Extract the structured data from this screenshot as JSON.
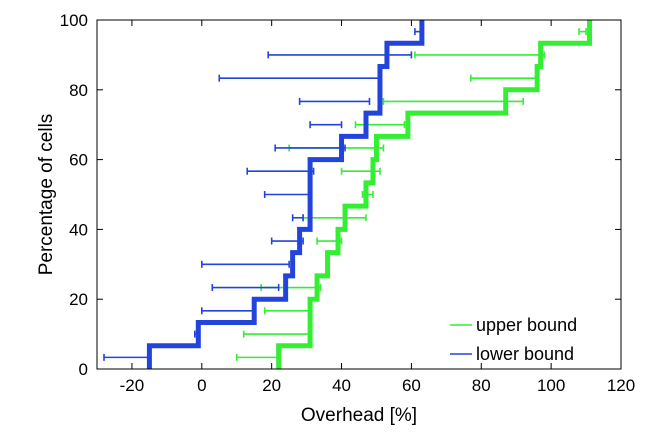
{
  "chart_data": {
    "type": "line",
    "title": "",
    "xlabel": "Overhead [%]",
    "ylabel": "Percentage of cells",
    "xlim": [
      -30,
      120
    ],
    "ylim": [
      0,
      100
    ],
    "xticks": [
      -20,
      0,
      20,
      40,
      60,
      80,
      100,
      120
    ],
    "yticks": [
      0,
      20,
      40,
      60,
      80,
      100
    ],
    "grid": false,
    "legend_position": "bottom-right",
    "series": [
      {
        "name": "upper bound",
        "color": "#33ee33",
        "step_x": [
          22,
          31,
          33,
          36,
          39,
          41,
          47,
          49,
          50,
          59,
          87,
          96,
          97,
          111
        ],
        "step_y": [
          0,
          6.67,
          20,
          26.67,
          33.33,
          40,
          46.67,
          53.33,
          60,
          66.67,
          73.33,
          80,
          86.67,
          93.33
        ],
        "top_y": 100,
        "errorbars": [
          {
            "y": 3.33,
            "lo": 10,
            "hi": 22
          },
          {
            "y": 10,
            "lo": 12,
            "hi": 31
          },
          {
            "y": 16.67,
            "lo": 18,
            "hi": 31
          },
          {
            "y": 23.33,
            "lo": 17,
            "hi": 34
          },
          {
            "y": 36.67,
            "lo": 33,
            "hi": 40
          },
          {
            "y": 43.33,
            "lo": 29,
            "hi": 47
          },
          {
            "y": 50,
            "lo": 46,
            "hi": 49
          },
          {
            "y": 56.67,
            "lo": 40,
            "hi": 51
          },
          {
            "y": 63.33,
            "lo": 25,
            "hi": 52
          },
          {
            "y": 70,
            "lo": 44,
            "hi": 58
          },
          {
            "y": 76.67,
            "lo": 52,
            "hi": 92
          },
          {
            "y": 83.33,
            "lo": 77,
            "hi": 96
          },
          {
            "y": 90,
            "lo": 61,
            "hi": 98
          },
          {
            "y": 96.67,
            "lo": 108,
            "hi": 110
          }
        ]
      },
      {
        "name": "lower bound",
        "color": "#2244dd",
        "step_x": [
          -15,
          -1,
          15,
          24,
          26,
          28,
          31,
          40,
          47,
          51,
          53,
          63
        ],
        "step_y": [
          0,
          6.67,
          13.33,
          20,
          26.67,
          33.33,
          40,
          60,
          66.67,
          73.33,
          86.67,
          93.33
        ],
        "top_y": 100,
        "errorbars": [
          {
            "y": 3.33,
            "lo": -28,
            "hi": -15
          },
          {
            "y": 10,
            "lo": -2,
            "hi": -1
          },
          {
            "y": 16.67,
            "lo": 0,
            "hi": 15
          },
          {
            "y": 23.33,
            "lo": 3,
            "hi": 22
          },
          {
            "y": 30,
            "lo": 0,
            "hi": 25
          },
          {
            "y": 36.67,
            "lo": 20,
            "hi": 29
          },
          {
            "y": 43.33,
            "lo": 26,
            "hi": 29
          },
          {
            "y": 50,
            "lo": 18,
            "hi": 31
          },
          {
            "y": 56.67,
            "lo": 13,
            "hi": 32
          },
          {
            "y": 63.33,
            "lo": 21,
            "hi": 41
          },
          {
            "y": 70,
            "lo": 31,
            "hi": 40
          },
          {
            "y": 76.67,
            "lo": 28,
            "hi": 48
          },
          {
            "y": 83.33,
            "lo": 5,
            "hi": 51
          },
          {
            "y": 90,
            "lo": 19,
            "hi": 60
          },
          {
            "y": 96.67,
            "lo": 61,
            "hi": 63
          }
        ]
      }
    ]
  }
}
